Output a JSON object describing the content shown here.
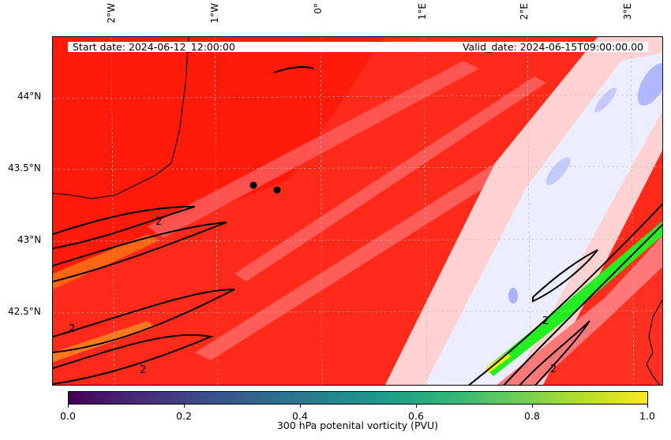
{
  "header": {
    "start_date": "Start date: 2024-06-12_12:00:00",
    "valid_date": "Valid_date: 2024-06-15T09:00:00.00"
  },
  "axes": {
    "lon_labels": [
      "2°W",
      "1°W",
      "0°",
      "1°E",
      "2°E",
      "3°E"
    ],
    "lat_labels": [
      "44°N",
      "43.5°N",
      "43°N",
      "42.5°N"
    ]
  },
  "contour_level_label": "2",
  "colorbar": {
    "ticks": [
      "0.0",
      "0.2",
      "0.4",
      "0.6",
      "0.8",
      "1.0"
    ],
    "label": "300 hPa potenital vorticity (PVU)",
    "colormap": [
      "#440154",
      "#3e4989",
      "#26828e",
      "#35b779",
      "#b5de2b",
      "#fde725"
    ]
  },
  "colors": {
    "high": "#ff1a0a",
    "mid": "#ff6a6a",
    "low": "#ffdcdc",
    "very_low": "#e8ecff",
    "negative": "#b0b8ff",
    "contour": "#000000",
    "peak": "#22ee22"
  }
}
